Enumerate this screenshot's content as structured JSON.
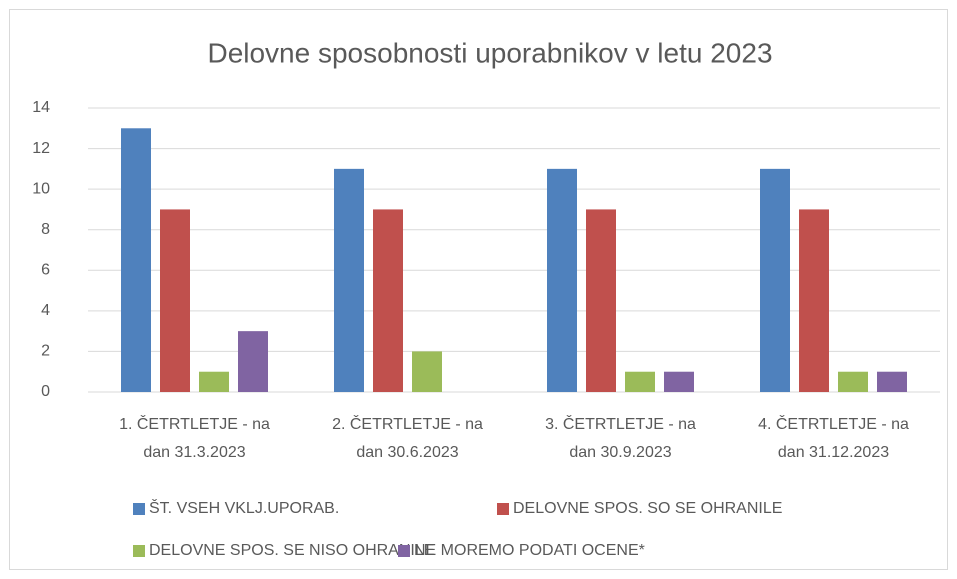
{
  "chart_data": {
    "type": "bar",
    "title": "Delovne sposobnosti uporabnikov v letu 2023",
    "categories": [
      "1. ČETRTLETJE -  na\ndan 31.3.2023",
      "2. ČETRTLETJE - na\ndan 30.6.2023",
      "3. ČETRTLETJE - na\ndan 30.9.2023",
      "4. ČETRTLETJE - na\ndan 31.12.2023"
    ],
    "series": [
      {
        "name": "ŠT. VSEH VKLJ.UPORAB.",
        "color": "#4f81bd",
        "values": [
          13,
          11,
          11,
          11
        ]
      },
      {
        "name": "DELOVNE SPOS. SO SE OHRANILE",
        "color": "#c0504d",
        "values": [
          9,
          9,
          9,
          9
        ]
      },
      {
        "name": "DELOVNE SPOS. SE NISO OHRANILE",
        "color": "#9bbb59",
        "values": [
          1,
          2,
          1,
          1
        ]
      },
      {
        "name": "NE MOREMO PODATI OCENE*",
        "color": "#8064a2",
        "values": [
          3,
          0,
          1,
          1
        ]
      }
    ],
    "ylim": [
      0,
      14
    ],
    "yticks": [
      0,
      2,
      4,
      6,
      8,
      10,
      12,
      14
    ],
    "grid": true,
    "legend": "bottom"
  }
}
